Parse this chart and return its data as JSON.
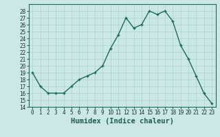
{
  "x": [
    0,
    1,
    2,
    3,
    4,
    5,
    6,
    7,
    8,
    9,
    10,
    11,
    12,
    13,
    14,
    15,
    16,
    17,
    18,
    19,
    20,
    21,
    22,
    23
  ],
  "y": [
    19,
    17,
    16,
    16,
    16,
    17,
    18,
    18.5,
    19,
    20,
    22.5,
    24.5,
    27,
    25.5,
    26,
    28,
    27.5,
    28,
    26.5,
    23,
    21,
    18.5,
    16,
    14.5
  ],
  "line_color": "#1a6b5a",
  "marker_color": "#1a6b5a",
  "bg_color": "#cbe8e4",
  "grid_color": "#aad4ce",
  "xlabel": "Humidex (Indice chaleur)",
  "ylim": [
    14,
    29
  ],
  "xlim": [
    -0.5,
    23.5
  ],
  "yticks": [
    14,
    15,
    16,
    17,
    18,
    19,
    20,
    21,
    22,
    23,
    24,
    25,
    26,
    27,
    28
  ],
  "xticks": [
    0,
    1,
    2,
    3,
    4,
    5,
    6,
    7,
    8,
    9,
    10,
    11,
    12,
    13,
    14,
    15,
    16,
    17,
    18,
    19,
    20,
    21,
    22,
    23
  ],
  "xtick_labels": [
    "0",
    "1",
    "2",
    "3",
    "4",
    "5",
    "6",
    "7",
    "8",
    "9",
    "10",
    "11",
    "12",
    "13",
    "14",
    "15",
    "16",
    "17",
    "18",
    "19",
    "20",
    "21",
    "22",
    "23"
  ],
  "ytick_labels": [
    "14",
    "15",
    "16",
    "17",
    "18",
    "19",
    "20",
    "21",
    "22",
    "23",
    "24",
    "25",
    "26",
    "27",
    "28"
  ],
  "tick_fontsize": 5.5,
  "xlabel_fontsize": 7.5,
  "marker_size": 3.5,
  "line_width": 1.0
}
